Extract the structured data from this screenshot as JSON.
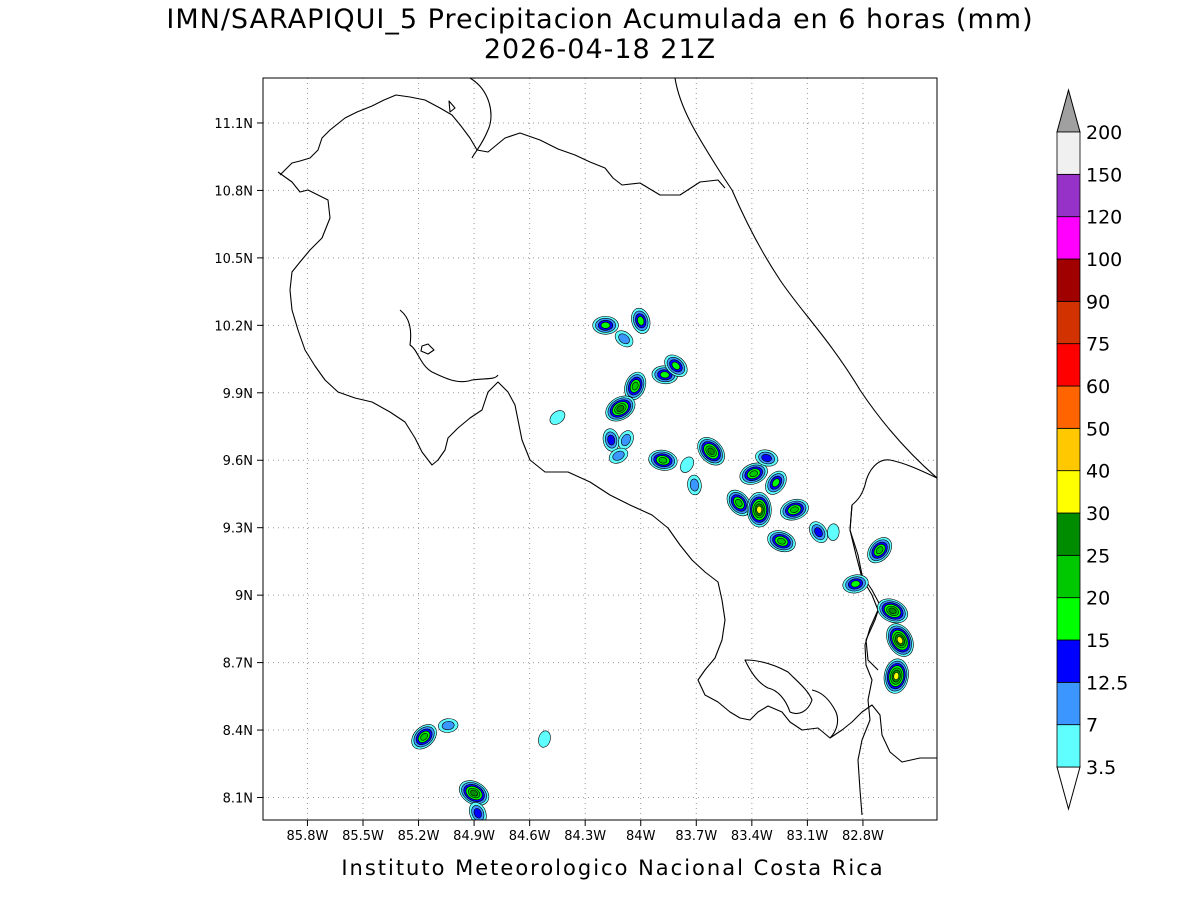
{
  "title_line1": "IMN/SARAPIQUI_5 Precipitacion Acumulada en 6 horas (mm)",
  "title_line2": "2026-04-18 21Z",
  "footer": "Instituto Meteorologico Nacional Costa Rica",
  "map": {
    "lon_range": [
      -86.04,
      -82.4
    ],
    "lat_range": [
      8.0,
      11.3
    ],
    "lon_ticks": [
      {
        "value": -85.8,
        "label": "85.8W"
      },
      {
        "value": -85.5,
        "label": "85.5W"
      },
      {
        "value": -85.2,
        "label": "85.2W"
      },
      {
        "value": -84.9,
        "label": "84.9W"
      },
      {
        "value": -84.6,
        "label": "84.6W"
      },
      {
        "value": -84.3,
        "label": "84.3W"
      },
      {
        "value": -84.0,
        "label": "84W"
      },
      {
        "value": -83.7,
        "label": "83.7W"
      },
      {
        "value": -83.4,
        "label": "83.4W"
      },
      {
        "value": -83.1,
        "label": "83.1W"
      },
      {
        "value": -82.8,
        "label": "82.8W"
      }
    ],
    "lat_ticks": [
      {
        "value": 8.1,
        "label": "8.1N"
      },
      {
        "value": 8.4,
        "label": "8.4N"
      },
      {
        "value": 8.7,
        "label": "8.7N"
      },
      {
        "value": 9.0,
        "label": "9N"
      },
      {
        "value": 9.3,
        "label": "9.3N"
      },
      {
        "value": 9.6,
        "label": "9.6N"
      },
      {
        "value": 9.9,
        "label": "9.9N"
      },
      {
        "value": 10.2,
        "label": "10.2N"
      },
      {
        "value": 10.5,
        "label": "10.5N"
      },
      {
        "value": 10.8,
        "label": "10.8N"
      },
      {
        "value": 11.1,
        "label": "11.1N"
      }
    ],
    "grid": true,
    "grid_style": "dotted gray"
  },
  "colorbar": {
    "position": "right",
    "below_color": "#ffffff",
    "above_color": "#a0a0a0",
    "levels": [
      {
        "label": "3.5",
        "color": "#ffffff"
      },
      {
        "label": "7",
        "color": "#60ffff"
      },
      {
        "label": "12.5",
        "color": "#3c96ff"
      },
      {
        "label": "15",
        "color": "#0000ff"
      },
      {
        "label": "20",
        "color": "#00ff00"
      },
      {
        "label": "25",
        "color": "#00c800"
      },
      {
        "label": "30",
        "color": "#008c00"
      },
      {
        "label": "40",
        "color": "#ffff00"
      },
      {
        "label": "50",
        "color": "#ffc800"
      },
      {
        "label": "60",
        "color": "#ff6400"
      },
      {
        "label": "75",
        "color": "#ff0000"
      },
      {
        "label": "90",
        "color": "#d23200"
      },
      {
        "label": "100",
        "color": "#a00000"
      },
      {
        "label": "120",
        "color": "#ff00ff"
      },
      {
        "label": "150",
        "color": "#9632c8"
      },
      {
        "label": "200",
        "color": "#f0f0f0"
      }
    ]
  },
  "precip_cells": [
    {
      "lon": -84.19,
      "lat": 10.2,
      "max": 20
    },
    {
      "lon": -84.09,
      "lat": 10.14,
      "max": 12.5
    },
    {
      "lon": -84.0,
      "lat": 10.22,
      "max": 20
    },
    {
      "lon": -84.03,
      "lat": 9.93,
      "max": 25
    },
    {
      "lon": -84.11,
      "lat": 9.83,
      "max": 30
    },
    {
      "lon": -83.87,
      "lat": 9.98,
      "max": 20
    },
    {
      "lon": -83.81,
      "lat": 10.02,
      "max": 20
    },
    {
      "lon": -84.16,
      "lat": 9.69,
      "max": 15
    },
    {
      "lon": -84.08,
      "lat": 9.69,
      "max": 12.5
    },
    {
      "lon": -84.12,
      "lat": 9.62,
      "max": 12.5
    },
    {
      "lon": -83.88,
      "lat": 9.6,
      "max": 25
    },
    {
      "lon": -83.62,
      "lat": 9.64,
      "max": 30
    },
    {
      "lon": -83.71,
      "lat": 9.49,
      "max": 12.5
    },
    {
      "lon": -83.75,
      "lat": 9.58,
      "max": 7
    },
    {
      "lon": -83.39,
      "lat": 9.54,
      "max": 25
    },
    {
      "lon": -83.32,
      "lat": 9.61,
      "max": 15
    },
    {
      "lon": -83.47,
      "lat": 9.41,
      "max": 25
    },
    {
      "lon": -83.36,
      "lat": 9.38,
      "max": 40
    },
    {
      "lon": -83.27,
      "lat": 9.5,
      "max": 20
    },
    {
      "lon": -83.17,
      "lat": 9.38,
      "max": 25
    },
    {
      "lon": -83.24,
      "lat": 9.24,
      "max": 25
    },
    {
      "lon": -83.04,
      "lat": 9.28,
      "max": 15
    },
    {
      "lon": -82.96,
      "lat": 9.28,
      "max": 7
    },
    {
      "lon": -82.71,
      "lat": 9.2,
      "max": 25
    },
    {
      "lon": -82.84,
      "lat": 9.05,
      "max": 20
    },
    {
      "lon": -82.64,
      "lat": 8.93,
      "max": 30
    },
    {
      "lon": -82.6,
      "lat": 8.8,
      "max": 40
    },
    {
      "lon": -82.62,
      "lat": 8.64,
      "max": 40
    },
    {
      "lon": -85.17,
      "lat": 8.37,
      "max": 25
    },
    {
      "lon": -85.04,
      "lat": 8.42,
      "max": 12.5
    },
    {
      "lon": -84.9,
      "lat": 8.12,
      "max": 30
    },
    {
      "lon": -84.88,
      "lat": 8.03,
      "max": 15
    },
    {
      "lon": -84.52,
      "lat": 8.36,
      "max": 7
    },
    {
      "lon": -84.45,
      "lat": 9.79,
      "max": 7
    }
  ]
}
